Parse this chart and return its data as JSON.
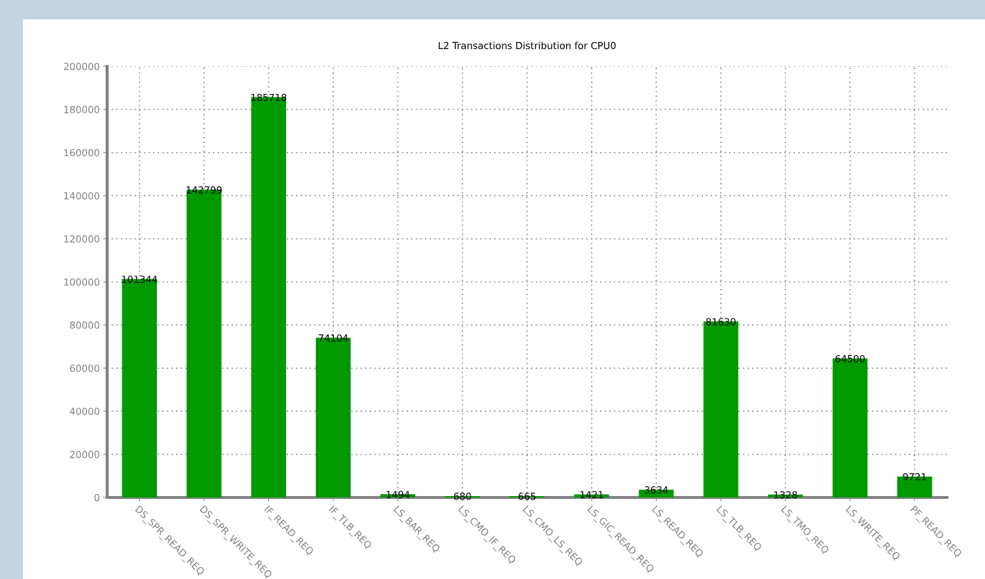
{
  "chart_data": {
    "type": "bar",
    "title": "L2 Transactions Distribution for CPU0",
    "categories": [
      "DS_SPR_READ_REQ",
      "DS_SPR_WRITE_REQ",
      "IF_READ_REQ",
      "IF_TLB_REQ",
      "LS_BAR_REQ",
      "LS_CMO_IF_REQ",
      "LS_CMO_LS_REQ",
      "LS_GIC_READ_REQ",
      "LS_READ_REQ",
      "LS_TLB_REQ",
      "LS_TMO_REQ",
      "LS_WRITE_REQ",
      "PF_READ_REQ"
    ],
    "values": [
      101344,
      142799,
      185718,
      74104,
      1494,
      680,
      665,
      1421,
      3634,
      81630,
      1328,
      64500,
      9721
    ],
    "color": "#009900",
    "ylim": [
      0,
      200000
    ],
    "yticks": [
      0,
      20000,
      40000,
      60000,
      80000,
      100000,
      120000,
      140000,
      160000,
      180000,
      200000
    ],
    "grid": true,
    "data_labels": true
  }
}
